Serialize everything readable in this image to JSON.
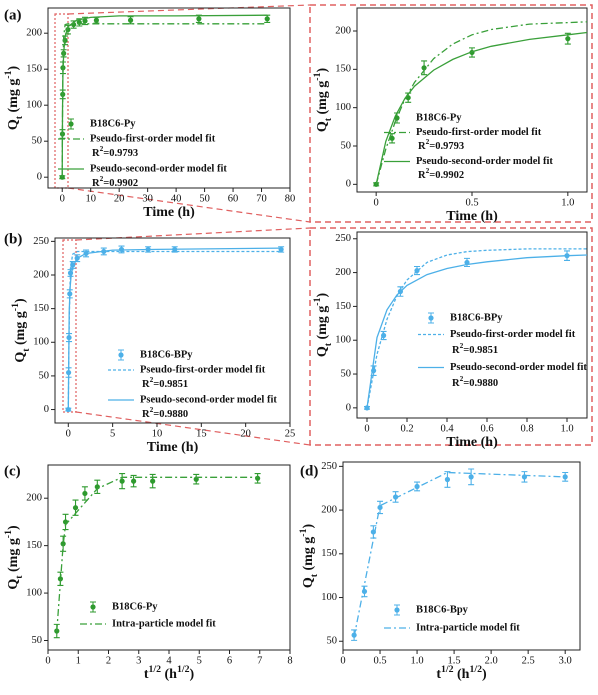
{
  "chart_data": [
    {
      "type": "scatter",
      "panel": "(a)",
      "xlabel": [
        {
          "text": "Time (h)"
        }
      ],
      "ylabel": [
        {
          "text": "Q"
        },
        {
          "text": "t",
          "shift": "sub"
        },
        {
          "text": " (mg g"
        },
        {
          "text": "-1",
          "shift": "sup"
        },
        {
          "text": ")"
        }
      ],
      "xlim": [
        -5,
        80
      ],
      "ylim": [
        -15,
        235
      ],
      "xticks": [
        0,
        10,
        20,
        30,
        40,
        50,
        60,
        70,
        80
      ],
      "yticks": [
        0,
        50,
        100,
        150,
        200
      ],
      "series": [
        {
          "name": "B18C6-Py",
          "color": "#2e9a2e",
          "mode": "markers",
          "x": [
            0,
            0.083,
            0.167,
            0.25,
            0.5,
            1,
            2,
            4,
            6,
            8,
            12,
            24,
            48,
            72
          ],
          "values": [
            0,
            60,
            115,
            152,
            172,
            190,
            205,
            212,
            215,
            217,
            218,
            218,
            220,
            220
          ],
          "errors": [
            2,
            6,
            6,
            8,
            5,
            6,
            6,
            5,
            5,
            5,
            4,
            5,
            5,
            5
          ]
        },
        {
          "name": "Pseudo-first-order model fit",
          "color": "#3aa03a",
          "mode": "lines",
          "dash": "dashdot",
          "x": [
            0,
            0.1,
            0.25,
            0.5,
            1,
            2,
            5,
            10,
            20,
            40,
            72
          ],
          "values": [
            0,
            82,
            152,
            195,
            212,
            213,
            213,
            213,
            213,
            213,
            213
          ],
          "note": [
            {
              "text": "R"
            },
            {
              "text": "2",
              "shift": "sup"
            },
            {
              "text": "=0.9793"
            }
          ]
        },
        {
          "name": "Pseudo-second-order model fit",
          "color": "#3aa03a",
          "mode": "lines",
          "dash": "solid",
          "x": [
            0,
            0.1,
            0.25,
            0.5,
            1,
            2,
            5,
            10,
            20,
            40,
            72
          ],
          "values": [
            0,
            89,
            140,
            173,
            195,
            209,
            218,
            222,
            224,
            224,
            225
          ],
          "note": [
            {
              "text": "R"
            },
            {
              "text": "2",
              "shift": "sup"
            },
            {
              "text": "=0.9902"
            }
          ]
        }
      ]
    },
    {
      "type": "scatter",
      "xlabel": [
        {
          "text": "Time (h)"
        }
      ],
      "ylabel": [
        {
          "text": "Q"
        },
        {
          "text": "t",
          "shift": "sub"
        },
        {
          "text": " (mg g"
        },
        {
          "text": "-1",
          "shift": "sup"
        },
        {
          "text": ")"
        }
      ],
      "xlim": [
        -0.1,
        1.1
      ],
      "ylim": [
        -10,
        230
      ],
      "xticks": [
        0,
        0.5,
        {
          "value": 1,
          "label": "1.0"
        }
      ],
      "yticks": [
        0,
        50,
        100,
        150,
        200
      ],
      "series": [
        {
          "name": "B18C6-Py",
          "color": "#2e9a2e",
          "mode": "markers",
          "x": [
            0,
            0.083,
            0.167,
            0.25,
            0.5,
            1
          ],
          "values": [
            0,
            60,
            113,
            152,
            172,
            190
          ],
          "errors": [
            2,
            6,
            6,
            9,
            6,
            7
          ]
        },
        {
          "name": "Pseudo-first-order model fit",
          "color": "#3aa03a",
          "mode": "lines",
          "dash": "dashdot",
          "x": [
            0,
            0.05,
            0.1,
            0.15,
            0.2,
            0.3,
            0.4,
            0.5,
            0.6,
            0.8,
            1.0,
            1.1
          ],
          "values": [
            0,
            46,
            82,
            111,
            133,
            164,
            183,
            195,
            202,
            209,
            211,
            212
          ],
          "note": [
            {
              "text": "R"
            },
            {
              "text": "2",
              "shift": "sup"
            },
            {
              "text": "=0.9793"
            }
          ]
        },
        {
          "name": "Pseudo-second-order model fit",
          "color": "#3aa03a",
          "mode": "lines",
          "dash": "solid",
          "x": [
            0,
            0.05,
            0.1,
            0.15,
            0.2,
            0.3,
            0.4,
            0.5,
            0.6,
            0.8,
            1.0,
            1.1
          ],
          "values": [
            0,
            56,
            89,
            112,
            128,
            149,
            163,
            173,
            180,
            189,
            195,
            198
          ],
          "note": [
            {
              "text": "R"
            },
            {
              "text": "2",
              "shift": "sup"
            },
            {
              "text": "=0.9902"
            }
          ]
        }
      ]
    },
    {
      "type": "scatter",
      "panel": "(b)",
      "xlabel": [
        {
          "text": "Time (h)"
        }
      ],
      "ylabel": [
        {
          "text": "Q"
        },
        {
          "text": "t",
          "shift": "sub"
        },
        {
          "text": " (mg g"
        },
        {
          "text": "-1",
          "shift": "sup"
        },
        {
          "text": ")"
        }
      ],
      "xlim": [
        -1.5,
        25
      ],
      "ylim": [
        -20,
        255
      ],
      "xticks": [
        0,
        5,
        10,
        15,
        20,
        25
      ],
      "yticks": [
        0,
        50,
        100,
        150,
        200,
        250
      ],
      "series": [
        {
          "name": "B18C6-BPy",
          "color": "#4db0e8",
          "mode": "markers",
          "x": [
            0,
            0.033,
            0.083,
            0.167,
            0.25,
            0.5,
            1,
            2,
            4,
            6,
            9,
            12,
            24
          ],
          "values": [
            0,
            55,
            107,
            172,
            203,
            215,
            225,
            232,
            235,
            238,
            238,
            238,
            238
          ],
          "errors": [
            2,
            7,
            6,
            6,
            5,
            5,
            5,
            5,
            5,
            5,
            4,
            4,
            4
          ]
        },
        {
          "name": "Pseudo-first-order model fit",
          "color": "#4db0e8",
          "mode": "lines",
          "dash": "dotted",
          "x": [
            0,
            0.1,
            0.2,
            0.3,
            0.5,
            1,
            2,
            5,
            10,
            24
          ],
          "values": [
            0,
            131,
            189,
            215,
            231,
            235,
            235,
            235,
            235,
            235
          ],
          "note": [
            {
              "text": "R"
            },
            {
              "text": "2",
              "shift": "sup"
            },
            {
              "text": "=0.9851"
            }
          ]
        },
        {
          "name": "Pseudo-second-order model fit",
          "color": "#4db0e8",
          "mode": "lines",
          "dash": "solid",
          "x": [
            0,
            0.1,
            0.2,
            0.3,
            0.5,
            1,
            2,
            5,
            10,
            24
          ],
          "values": [
            0,
            145,
            181,
            197,
            212,
            225,
            232,
            237,
            238,
            240
          ],
          "note": [
            {
              "text": "R"
            },
            {
              "text": "2",
              "shift": "sup"
            },
            {
              "text": "=0.9880"
            }
          ]
        }
      ]
    },
    {
      "type": "scatter",
      "xlabel": [
        {
          "text": "Time (h)"
        }
      ],
      "ylabel": [
        {
          "text": "Q"
        },
        {
          "text": "t",
          "shift": "sub"
        },
        {
          "text": " (mg g"
        },
        {
          "text": "-1",
          "shift": "sup"
        },
        {
          "text": ")"
        }
      ],
      "xlim": [
        -0.05,
        1.1
      ],
      "ylim": [
        -15,
        260
      ],
      "xticks": [
        0,
        0.2,
        0.4,
        0.6,
        0.8,
        {
          "value": 1,
          "label": "1.0"
        }
      ],
      "yticks": [
        0,
        50,
        100,
        150,
        200,
        250
      ],
      "series": [
        {
          "name": "B18C6-BPy",
          "color": "#4db0e8",
          "mode": "markers",
          "x": [
            0,
            0.033,
            0.083,
            0.167,
            0.25,
            0.5,
            1
          ],
          "values": [
            0,
            55,
            107,
            172,
            203,
            215,
            225
          ],
          "errors": [
            2,
            7,
            6,
            7,
            6,
            6,
            7
          ]
        },
        {
          "name": "Pseudo-first-order model fit",
          "color": "#4db0e8",
          "mode": "lines",
          "dash": "dotted",
          "x": [
            0,
            0.05,
            0.1,
            0.15,
            0.2,
            0.3,
            0.4,
            0.5,
            0.6,
            0.8,
            1.0,
            1.1
          ],
          "values": [
            0,
            79,
            131,
            166,
            189,
            215,
            226,
            231,
            233,
            235,
            235,
            235
          ],
          "note": [
            {
              "text": "R"
            },
            {
              "text": "2",
              "shift": "sup"
            },
            {
              "text": "=0.9851"
            }
          ]
        },
        {
          "name": "Pseudo-second-order model fit",
          "color": "#4db0e8",
          "mode": "lines",
          "dash": "solid",
          "x": [
            0,
            0.05,
            0.1,
            0.15,
            0.2,
            0.3,
            0.4,
            0.5,
            0.6,
            0.8,
            1.0,
            1.1
          ],
          "values": [
            0,
            104,
            145,
            167,
            181,
            197,
            206,
            212,
            216,
            222,
            225,
            226
          ],
          "note": [
            {
              "text": "R"
            },
            {
              "text": "2",
              "shift": "sup"
            },
            {
              "text": "=0.9880"
            }
          ]
        }
      ]
    },
    {
      "type": "scatter",
      "panel": "(c)",
      "xlabel": [
        {
          "text": "t"
        },
        {
          "text": "1/2",
          "shift": "sup"
        },
        {
          "text": " (h"
        },
        {
          "text": "1/2",
          "shift": "sup"
        },
        {
          "text": ")"
        }
      ],
      "ylabel": [
        {
          "text": "Q"
        },
        {
          "text": "t",
          "shift": "sub"
        },
        {
          "text": " (mg g"
        },
        {
          "text": "-1",
          "shift": "sup"
        },
        {
          "text": ")"
        }
      ],
      "xlim": [
        0,
        8
      ],
      "ylim": [
        40,
        235
      ],
      "xticks": [
        0,
        1,
        2,
        3,
        4,
        5,
        6,
        7,
        8
      ],
      "yticks": [
        50,
        100,
        150,
        200
      ],
      "series": [
        {
          "name": "B18C6-Py",
          "color": "#2e9a2e",
          "mode": "markers",
          "x": [
            0.29,
            0.41,
            0.5,
            0.58,
            0.91,
            1.22,
            1.63,
            2.45,
            2.83,
            3.46,
            4.9,
            6.93
          ],
          "values": [
            60,
            115,
            152,
            175,
            190,
            205,
            212,
            218,
            218,
            218,
            220,
            221
          ],
          "errors": [
            7,
            7,
            8,
            8,
            8,
            7,
            7,
            8,
            6,
            7,
            5,
            5
          ]
        },
        {
          "name": "Intra-particle  model fit",
          "color": "#3aa03a",
          "mode": "lines",
          "dash": "dashdot",
          "x": [
            0.29,
            0.5,
            0.58,
            1.63,
            2.45,
            6.93
          ],
          "values": [
            60,
            150,
            172,
            210,
            222,
            222
          ]
        }
      ]
    },
    {
      "type": "scatter",
      "panel": "(d)",
      "xlabel": [
        {
          "text": "t"
        },
        {
          "text": "1/2",
          "shift": "sup"
        },
        {
          "text": " (h"
        },
        {
          "text": "1/2",
          "shift": "sup"
        },
        {
          "text": ")"
        }
      ],
      "ylabel": [
        {
          "text": "Q"
        },
        {
          "text": "t",
          "shift": "sub"
        },
        {
          "text": " (mg g"
        },
        {
          "text": "-1",
          "shift": "sup"
        },
        {
          "text": ")"
        }
      ],
      "xlim": [
        0,
        3.2
      ],
      "ylim": [
        40,
        255
      ],
      "xticks": [
        0,
        0.5,
        {
          "value": 1,
          "label": "1.0"
        },
        1.5,
        {
          "value": 2,
          "label": "2.0"
        },
        2.5,
        {
          "value": 3,
          "label": "3.0"
        }
      ],
      "yticks": [
        50,
        100,
        150,
        200,
        250
      ],
      "series": [
        {
          "name": "B18C6-Bpy",
          "color": "#4db0e8",
          "mode": "markers",
          "x": [
            0.15,
            0.29,
            0.41,
            0.5,
            0.71,
            1.0,
            1.41,
            1.73,
            2.45,
            3.0
          ],
          "values": [
            57,
            107,
            175,
            203,
            215,
            227,
            235,
            238,
            238,
            238
          ],
          "errors": [
            6,
            6,
            7,
            7,
            6,
            5,
            9,
            9,
            6,
            5
          ]
        },
        {
          "name": "Intra-particle  model fit",
          "color": "#4db0e8",
          "mode": "lines",
          "dash": "dashdot",
          "x": [
            0.15,
            0.5,
            1.41,
            3.0
          ],
          "values": [
            55,
            205,
            243,
            238
          ]
        }
      ]
    }
  ]
}
